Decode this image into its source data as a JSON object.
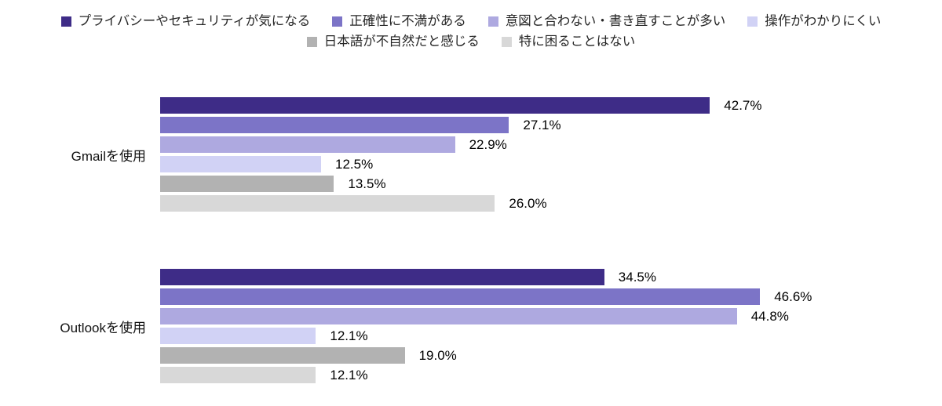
{
  "page": {
    "background": "#ffffff"
  },
  "chart_data": {
    "type": "bar",
    "orientation": "horizontal",
    "title": "",
    "categories": [
      "Gmailを使用",
      "Outlookを使用"
    ],
    "series": [
      {
        "name": "プライバシーやセキュリティが気になる",
        "color": "#3E2C87",
        "values": [
          42.7,
          34.5
        ]
      },
      {
        "name": "正確性に不満がある",
        "color": "#7C74C7",
        "values": [
          27.1,
          46.6
        ]
      },
      {
        "name": "意図と合わない・書き直すことが多い",
        "color": "#AEA9E0",
        "values": [
          22.9,
          44.8
        ]
      },
      {
        "name": "操作がわかりにくい",
        "color": "#D1D2F5",
        "values": [
          12.5,
          12.1
        ]
      },
      {
        "name": "日本語が不自然だと感じる",
        "color": "#B2B2B2",
        "values": [
          13.5,
          19.0
        ]
      },
      {
        "name": "特に困ることはない",
        "color": "#D8D8D8",
        "values": [
          26.0,
          12.1
        ]
      }
    ],
    "value_suffix": "%",
    "value_decimals": 1,
    "xlim": [
      0,
      50
    ],
    "grid": false,
    "data_labels": true,
    "legend_position": "top",
    "legend_rows": [
      [
        0,
        1,
        2,
        3
      ],
      [
        4,
        5
      ]
    ]
  }
}
